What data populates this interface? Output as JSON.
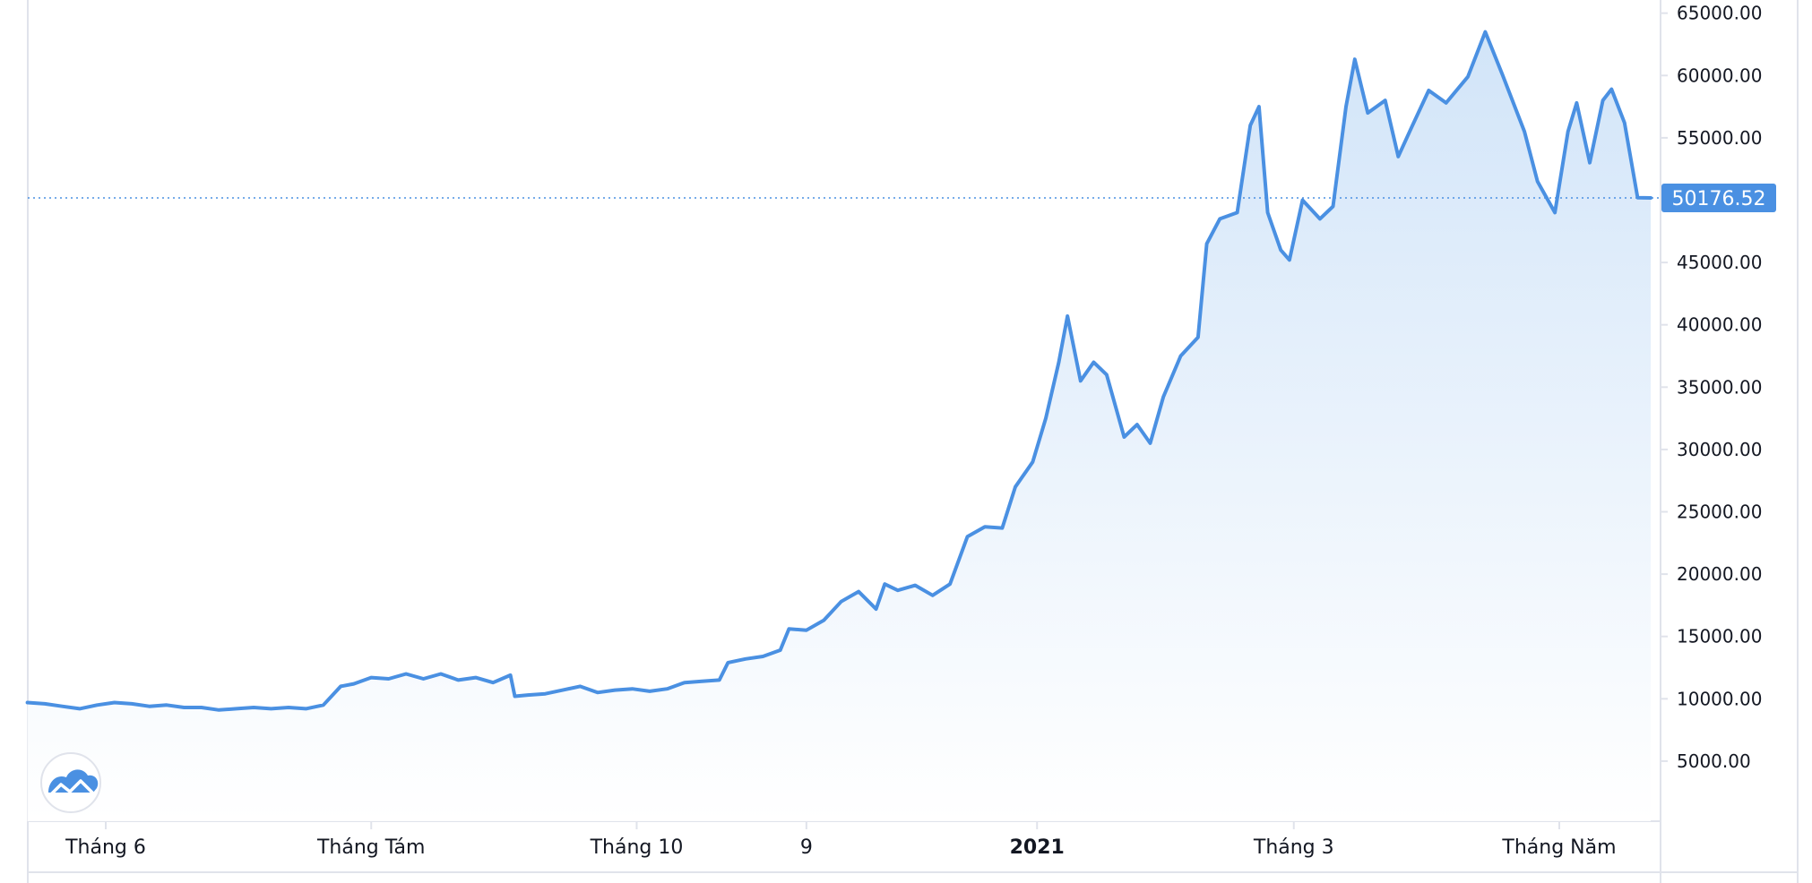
{
  "chart_data": {
    "type": "area",
    "title": "",
    "xlabel": "",
    "ylabel": "",
    "ylim": [
      0,
      70000
    ],
    "grid": false,
    "colors": {
      "line": "#4a90e2",
      "area_top": "#cfe3f8",
      "area_bottom": "#ffffff",
      "price_tag": "#4a90e2",
      "axis": "#e0e3eb"
    },
    "y_ticks": [
      "65000.00",
      "60000.00",
      "55000.00",
      "50000.00",
      "45000.00",
      "40000.00",
      "35000.00",
      "30000.00",
      "25000.00",
      "20000.00",
      "15000.00",
      "10000.00",
      "5000.00"
    ],
    "y_tick_values": [
      65000,
      60000,
      55000,
      50000,
      45000,
      40000,
      35000,
      30000,
      25000,
      20000,
      15000,
      10000,
      5000
    ],
    "x_ticks": [
      {
        "label": "Tháng 6",
        "date": "2020-06-01",
        "bold": false
      },
      {
        "label": "Tháng Tám",
        "date": "2020-08-01",
        "bold": false
      },
      {
        "label": "Tháng 10",
        "date": "2020-10-01",
        "bold": false
      },
      {
        "label": "9",
        "date": "2020-11-09",
        "bold": false
      },
      {
        "label": "2021",
        "date": "2021-01-01",
        "bold": true
      },
      {
        "label": "Tháng 3",
        "date": "2021-03-01",
        "bold": false
      },
      {
        "label": "Tháng Năm",
        "date": "2021-05-01",
        "bold": false
      }
    ],
    "last_price": 50176.52,
    "last_price_label": "50176.52",
    "series": [
      {
        "x": [
          "2020-05-14",
          "2020-05-18",
          "2020-05-22",
          "2020-05-26",
          "2020-05-30",
          "2020-06-03",
          "2020-06-07",
          "2020-06-11",
          "2020-06-15",
          "2020-06-19",
          "2020-06-23",
          "2020-06-27",
          "2020-07-01",
          "2020-07-05",
          "2020-07-09",
          "2020-07-13",
          "2020-07-17",
          "2020-07-21",
          "2020-07-25",
          "2020-07-28",
          "2020-08-01",
          "2020-08-05",
          "2020-08-09",
          "2020-08-13",
          "2020-08-17",
          "2020-08-21",
          "2020-08-25",
          "2020-08-29",
          "2020-09-02",
          "2020-09-03",
          "2020-09-06",
          "2020-09-10",
          "2020-09-14",
          "2020-09-18",
          "2020-09-22",
          "2020-09-26",
          "2020-09-30",
          "2020-10-04",
          "2020-10-08",
          "2020-10-12",
          "2020-10-16",
          "2020-10-20",
          "2020-10-22",
          "2020-10-26",
          "2020-10-30",
          "2020-11-03",
          "2020-11-05",
          "2020-11-09",
          "2020-11-13",
          "2020-11-17",
          "2020-11-21",
          "2020-11-25",
          "2020-11-27",
          "2020-11-30",
          "2020-12-04",
          "2020-12-08",
          "2020-12-12",
          "2020-12-16",
          "2020-12-20",
          "2020-12-24",
          "2020-12-27",
          "2020-12-31",
          "2021-01-03",
          "2021-01-06",
          "2021-01-08",
          "2021-01-11",
          "2021-01-14",
          "2021-01-17",
          "2021-01-21",
          "2021-01-24",
          "2021-01-27",
          "2021-01-30",
          "2021-02-03",
          "2021-02-07",
          "2021-02-09",
          "2021-02-12",
          "2021-02-16",
          "2021-02-19",
          "2021-02-21",
          "2021-02-23",
          "2021-02-26",
          "2021-02-28",
          "2021-03-03",
          "2021-03-07",
          "2021-03-10",
          "2021-03-13",
          "2021-03-15",
          "2021-03-18",
          "2021-03-22",
          "2021-03-25",
          "2021-03-28",
          "2021-04-01",
          "2021-04-05",
          "2021-04-10",
          "2021-04-14",
          "2021-04-18",
          "2021-04-23",
          "2021-04-26",
          "2021-04-30",
          "2021-05-03",
          "2021-05-05",
          "2021-05-08",
          "2021-05-11",
          "2021-05-13",
          "2021-05-16",
          "2021-05-19",
          "2021-05-22"
        ],
        "values": [
          9700,
          9600,
          9400,
          9200,
          9500,
          9700,
          9600,
          9400,
          9500,
          9300,
          9300,
          9100,
          9200,
          9300,
          9200,
          9300,
          9200,
          9500,
          11000,
          11200,
          11700,
          11600,
          12000,
          11600,
          12000,
          11500,
          11700,
          11300,
          11900,
          10200,
          10300,
          10400,
          10700,
          11000,
          10500,
          10700,
          10800,
          10600,
          10800,
          11300,
          11400,
          11500,
          12900,
          13200,
          13400,
          13900,
          15600,
          15500,
          16300,
          17800,
          18600,
          17200,
          19200,
          18700,
          19100,
          18300,
          19200,
          23000,
          23800,
          23700,
          27000,
          29000,
          32500,
          37000,
          40700,
          35500,
          37000,
          36000,
          31000,
          32000,
          30500,
          34200,
          37500,
          39000,
          46500,
          48500,
          49000,
          56000,
          57500,
          49000,
          46000,
          45200,
          50000,
          48500,
          49500,
          57500,
          61300,
          57000,
          58000,
          53500,
          55800,
          58800,
          57800,
          59900,
          63500,
          60000,
          55500,
          51500,
          49000,
          55500,
          57800,
          53000,
          58000,
          58900,
          56200,
          50200,
          50176.52
        ]
      }
    ]
  }
}
